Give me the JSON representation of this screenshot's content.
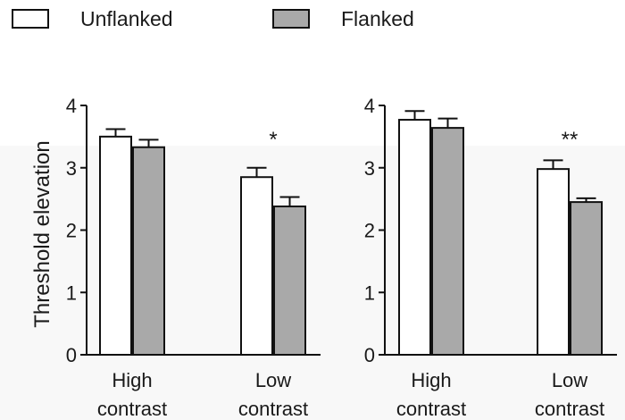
{
  "legend": {
    "items": [
      {
        "label": "Unflanked",
        "color": "#ffffff"
      },
      {
        "label": "Flanked",
        "color": "#a9a9a9"
      }
    ]
  },
  "chart_data": [
    {
      "type": "bar",
      "categories": [
        "High contrast",
        "Low contrast"
      ],
      "ylabel": "Threshold elevation",
      "ylim": [
        0,
        4
      ],
      "yticks": [
        "0",
        "1",
        "2",
        "3",
        "4"
      ],
      "series": [
        {
          "name": "Unflanked",
          "values": [
            3.5,
            2.85
          ],
          "errors": [
            0.12,
            0.15
          ],
          "color": "#ffffff"
        },
        {
          "name": "Flanked",
          "values": [
            3.33,
            2.38
          ],
          "errors": [
            0.12,
            0.15
          ],
          "color": "#a9a9a9"
        }
      ],
      "annotations": [
        {
          "category": "Low contrast",
          "text": "*"
        }
      ]
    },
    {
      "type": "bar",
      "categories": [
        "High contrast",
        "Low contrast"
      ],
      "ylabel": "",
      "ylim": [
        0,
        4
      ],
      "yticks": [
        "0",
        "1",
        "2",
        "3",
        "4"
      ],
      "series": [
        {
          "name": "Unflanked",
          "values": [
            3.77,
            2.98
          ],
          "errors": [
            0.14,
            0.14
          ],
          "color": "#ffffff"
        },
        {
          "name": "Flanked",
          "values": [
            3.64,
            2.45
          ],
          "errors": [
            0.15,
            0.06
          ],
          "color": "#a9a9a9"
        }
      ],
      "annotations": [
        {
          "category": "Low contrast",
          "text": "**"
        }
      ]
    }
  ]
}
